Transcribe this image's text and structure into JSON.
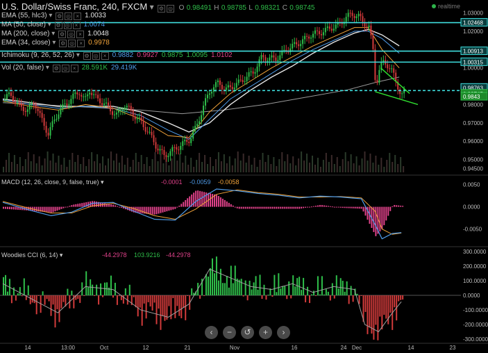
{
  "header": {
    "symbol": "U.S. Dollar/Swiss Franc, 240, FXCM",
    "open_label": "O",
    "open": "0.98491",
    "high_label": "H",
    "high": "0.98785",
    "low_label": "L",
    "low": "0.98321",
    "close_label": "C",
    "close": "0.98745",
    "realtime": "realtime"
  },
  "indicators": [
    {
      "name": "EMA (55, hlc3)",
      "value": "1.0033",
      "color": "#e6e6e6"
    },
    {
      "name": "MA (50, close)",
      "value": "1.0074",
      "color": "#4f9be8"
    },
    {
      "name": "MA (200, close)",
      "value": "1.0048",
      "color": "#e6e6e6"
    },
    {
      "name": "EMA (34, close)",
      "value": "0.9978",
      "color": "#f0a33a"
    },
    {
      "name": "Ichimoku (9, 26, 52, 26)",
      "values": [
        "0.9882",
        "0.9927",
        "0.9875",
        "1.0095",
        "1.0102"
      ],
      "colors": [
        "#4f9be8",
        "#e0428a",
        "#2fbf4a",
        "#2fbf4a",
        "#e0428a"
      ]
    },
    {
      "name": "Vol (20, false)",
      "values": [
        "28.591K",
        "29.419K"
      ],
      "colors": [
        "#2fbf4a",
        "#4f9be8"
      ]
    }
  ],
  "macd": {
    "name": "MACD (12, 26, close, 9, false, true)",
    "values": [
      "-0.0001",
      "-0.0059",
      "-0.0058"
    ],
    "colors": [
      "#e0428a",
      "#4f9be8",
      "#f0a33a"
    ]
  },
  "cci": {
    "name": "Woodies CCI (6, 14)",
    "values": [
      "-44.2978",
      "103.9216",
      "-44.2978"
    ],
    "colors": [
      "#e0428a",
      "#2fbf4a",
      "#e0428a"
    ]
  },
  "chart_data": {
    "type": "candlestick",
    "price_axis": {
      "ticks": [
        "1.03000",
        "1.02000",
        "1.01000",
        "1.00000",
        "0.99000",
        "0.98000",
        "0.97000",
        "0.96000",
        "0.95000",
        "0.94500"
      ],
      "range": [
        0.943,
        1.034
      ]
    },
    "price_labels": [
      {
        "text": "1.02468",
        "value": 1.02468
      },
      {
        "text": "1.00913",
        "value": 1.00913
      },
      {
        "text": "1.00315",
        "value": 1.00315
      },
      {
        "text": "0.98763",
        "value": 0.98763
      },
      {
        "text": "0.98745",
        "value": 0.98745
      },
      {
        "text": "0.9843",
        "value": 0.9843
      }
    ],
    "horizontal_lines": [
      1.02468,
      1.00913,
      1.00315,
      0.98763
    ],
    "macd_axis": {
      "ticks": [
        "0.0050",
        "0.0000",
        "-0.0050"
      ],
      "range": [
        -0.0085,
        0.0065
      ]
    },
    "cci_axis": {
      "ticks": [
        "300.0000",
        "200.0000",
        "100.0000",
        "0.0000",
        "-100.0000",
        "-200.0000",
        "-300.0000"
      ],
      "range": [
        -310,
        310
      ]
    },
    "time_axis": [
      "14",
      "13:00",
      "Oct",
      "12",
      "21",
      "Nov",
      "16",
      "24",
      "Dec",
      "14",
      "23"
    ],
    "close_path": [
      [
        0,
        0.983
      ],
      [
        10,
        0.9855
      ],
      [
        22,
        0.979
      ],
      [
        35,
        0.977
      ],
      [
        45,
        0.9815
      ],
      [
        55,
        0.972
      ],
      [
        65,
        0.964
      ],
      [
        72,
        0.97
      ],
      [
        80,
        0.976
      ],
      [
        90,
        0.98
      ],
      [
        100,
        0.984
      ],
      [
        110,
        0.987
      ],
      [
        118,
        0.982
      ],
      [
        125,
        0.988
      ],
      [
        135,
        0.983
      ],
      [
        145,
        0.981
      ],
      [
        155,
        0.977
      ],
      [
        165,
        0.974
      ],
      [
        175,
        0.98
      ],
      [
        183,
        0.977
      ],
      [
        190,
        0.974
      ],
      [
        200,
        0.97
      ],
      [
        210,
        0.965
      ],
      [
        222,
        0.957
      ],
      [
        233,
        0.952
      ],
      [
        245,
        0.955
      ],
      [
        258,
        0.958
      ],
      [
        270,
        0.961
      ],
      [
        280,
        0.968
      ],
      [
        290,
        0.979
      ],
      [
        300,
        0.988
      ],
      [
        312,
        0.992
      ],
      [
        322,
        0.988
      ],
      [
        332,
        0.99
      ],
      [
        342,
        0.992
      ],
      [
        352,
        0.995
      ],
      [
        362,
        0.9975
      ],
      [
        375,
        1.006
      ],
      [
        385,
        1.005
      ],
      [
        395,
        1.005
      ],
      [
        405,
        1.008
      ],
      [
        415,
        1.011
      ],
      [
        425,
        1.013
      ],
      [
        435,
        1.015
      ],
      [
        445,
        1.018
      ],
      [
        455,
        1.019
      ],
      [
        465,
        1.02
      ],
      [
        475,
        1.022
      ],
      [
        485,
        1.023
      ],
      [
        495,
        1.027
      ],
      [
        505,
        1.0295
      ],
      [
        515,
        1.028
      ],
      [
        522,
        1.025
      ],
      [
        530,
        1.022
      ],
      [
        536,
        1.01
      ],
      [
        540,
        0.99
      ],
      [
        546,
        1.0
      ],
      [
        552,
        1.004
      ],
      [
        558,
        1.001
      ],
      [
        565,
        0.997
      ],
      [
        572,
        0.99
      ],
      [
        577,
        0.9843
      ],
      [
        582,
        0.9874
      ]
    ],
    "sma_50_path": [
      [
        0,
        0.9825
      ],
      [
        40,
        0.98
      ],
      [
        80,
        0.978
      ],
      [
        120,
        0.979
      ],
      [
        160,
        0.978
      ],
      [
        200,
        0.974
      ],
      [
        240,
        0.966
      ],
      [
        270,
        0.961
      ],
      [
        300,
        0.972
      ],
      [
        330,
        0.983
      ],
      [
        360,
        0.99
      ],
      [
        390,
        0.997
      ],
      [
        420,
        1.004
      ],
      [
        450,
        1.01
      ],
      [
        480,
        1.015
      ],
      [
        510,
        1.02
      ],
      [
        530,
        1.02
      ],
      [
        550,
        1.016
      ],
      [
        575,
        1.008
      ]
    ],
    "ema_34_path": [
      [
        0,
        0.982
      ],
      [
        40,
        0.979
      ],
      [
        80,
        0.977
      ],
      [
        120,
        0.98
      ],
      [
        160,
        0.978
      ],
      [
        200,
        0.972
      ],
      [
        240,
        0.963
      ],
      [
        270,
        0.962
      ],
      [
        300,
        0.976
      ],
      [
        330,
        0.986
      ],
      [
        360,
        0.993
      ],
      [
        390,
        1.0
      ],
      [
        420,
        1.006
      ],
      [
        450,
        1.012
      ],
      [
        480,
        1.017
      ],
      [
        510,
        1.022
      ],
      [
        530,
        1.022
      ],
      [
        550,
        1.01
      ],
      [
        575,
        1.0
      ]
    ],
    "ema_55_path": [
      [
        0,
        0.983
      ],
      [
        40,
        0.981
      ],
      [
        80,
        0.979
      ],
      [
        120,
        0.979
      ],
      [
        160,
        0.979
      ],
      [
        200,
        0.976
      ],
      [
        240,
        0.97
      ],
      [
        270,
        0.965
      ],
      [
        300,
        0.97
      ],
      [
        330,
        0.98
      ],
      [
        360,
        0.988
      ],
      [
        390,
        0.995
      ],
      [
        420,
        1.001
      ],
      [
        450,
        1.008
      ],
      [
        480,
        1.014
      ],
      [
        510,
        1.019
      ],
      [
        530,
        1.021
      ],
      [
        550,
        1.018
      ],
      [
        575,
        1.012
      ]
    ],
    "sma_200_path": [
      [
        0,
        0.981
      ],
      [
        100,
        0.979
      ],
      [
        200,
        0.977
      ],
      [
        260,
        0.975
      ],
      [
        320,
        0.977
      ],
      [
        380,
        0.98
      ],
      [
        440,
        0.984
      ],
      [
        500,
        0.988
      ],
      [
        540,
        0.992
      ],
      [
        575,
        0.995
      ]
    ],
    "channel_lines": [
      [
        [
          540,
          0.987
        ],
        [
          602,
          0.98
        ]
      ],
      [
        [
          548,
          1.0
        ],
        [
          590,
          0.986
        ]
      ]
    ],
    "macd_line_path": [
      [
        0,
        0.001
      ],
      [
        40,
        -0.0008
      ],
      [
        70,
        -0.002
      ],
      [
        100,
        -0.0012
      ],
      [
        130,
        0.0008
      ],
      [
        160,
        0.001
      ],
      [
        190,
        -0.001
      ],
      [
        220,
        -0.0028
      ],
      [
        250,
        -0.003
      ],
      [
        280,
        0.0012
      ],
      [
        310,
        0.004
      ],
      [
        340,
        0.0036
      ],
      [
        370,
        0.003
      ],
      [
        400,
        0.0026
      ],
      [
        430,
        0.002
      ],
      [
        460,
        0.0024
      ],
      [
        490,
        0.0022
      ],
      [
        520,
        0.0018
      ],
      [
        540,
        -0.004
      ],
      [
        550,
        -0.0072
      ],
      [
        565,
        -0.006
      ],
      [
        578,
        -0.0058
      ]
    ],
    "macd_signal_path": [
      [
        0,
        0.0012
      ],
      [
        40,
        -0.0004
      ],
      [
        70,
        -0.0014
      ],
      [
        100,
        -0.0014
      ],
      [
        130,
        0.0002
      ],
      [
        160,
        0.0008
      ],
      [
        190,
        -0.0004
      ],
      [
        220,
        -0.002
      ],
      [
        250,
        -0.0028
      ],
      [
        280,
        -0.0005
      ],
      [
        310,
        0.0028
      ],
      [
        340,
        0.0038
      ],
      [
        370,
        0.0032
      ],
      [
        400,
        0.0028
      ],
      [
        430,
        0.0022
      ],
      [
        460,
        0.0022
      ],
      [
        490,
        0.0023
      ],
      [
        520,
        0.002
      ],
      [
        540,
        -0.001
      ],
      [
        550,
        -0.005
      ],
      [
        565,
        -0.0062
      ],
      [
        578,
        -0.0059
      ]
    ],
    "cci_path": [
      [
        0,
        80
      ],
      [
        40,
        -20
      ],
      [
        80,
        -120
      ],
      [
        120,
        60
      ],
      [
        160,
        40
      ],
      [
        200,
        -100
      ],
      [
        240,
        -150
      ],
      [
        270,
        -60
      ],
      [
        300,
        180
      ],
      [
        330,
        120
      ],
      [
        360,
        60
      ],
      [
        390,
        40
      ],
      [
        420,
        80
      ],
      [
        450,
        20
      ],
      [
        480,
        60
      ],
      [
        510,
        40
      ],
      [
        525,
        -200
      ],
      [
        545,
        -250
      ],
      [
        565,
        -120
      ],
      [
        578,
        -44
      ]
    ]
  },
  "nav_buttons": [
    "‹",
    "−",
    "↺",
    "+",
    "›"
  ]
}
